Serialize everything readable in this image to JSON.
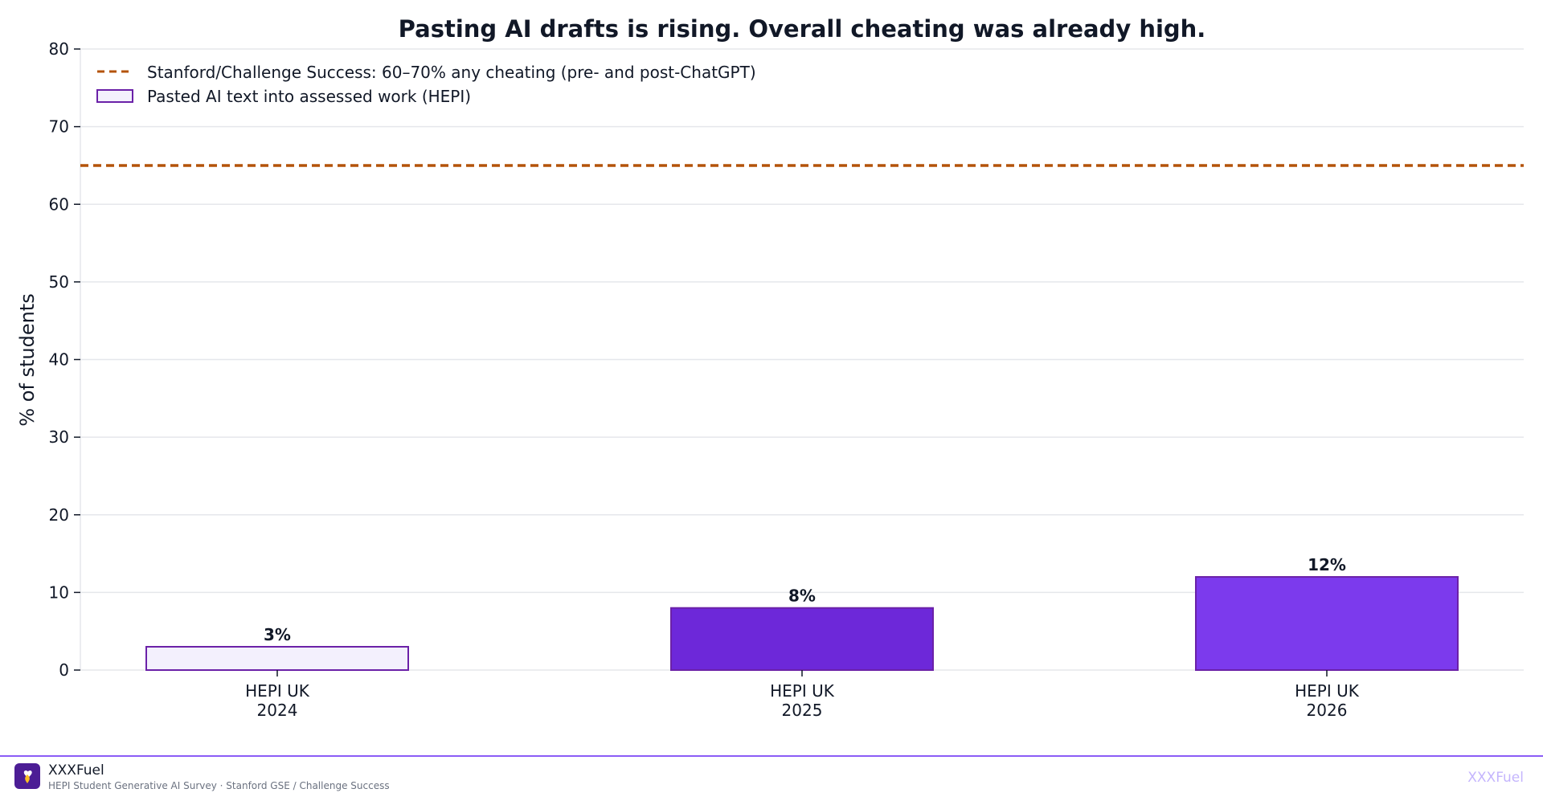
{
  "chart_data": {
    "type": "bar",
    "title": "Pasting AI drafts is rising. Overall cheating was already high.",
    "xlabel": "",
    "ylabel": "% of students",
    "ylim": [
      0,
      80
    ],
    "yticks": [
      0,
      10,
      20,
      30,
      40,
      50,
      60,
      70,
      80
    ],
    "grid": true,
    "legend_position": "top-left",
    "categories": [
      [
        "HEPI UK",
        "2024"
      ],
      [
        "HEPI UK",
        "2025"
      ],
      [
        "HEPI UK",
        "2026"
      ]
    ],
    "series": [
      {
        "name": "Pasted AI text into assessed work (HEPI)",
        "values": [
          3,
          8,
          12
        ],
        "value_labels": [
          "3%",
          "8%",
          "12%"
        ],
        "fill_colors": [
          "#f3f0fd",
          "#6d28d9",
          "#7c3aed"
        ],
        "edge_color": "#6b21a8"
      }
    ],
    "reference_line": {
      "name": "Stanford/Challenge Success: 60–70% any cheating (pre- and post-ChatGPT)",
      "value": 65,
      "style": "dashed",
      "color": "#b45309"
    }
  },
  "footer": {
    "brand": "XXXFuel",
    "source": "HEPI Student Generative AI Survey  ·  Stanford GSE / Challenge Success",
    "watermark": "XXXFuel",
    "logo_icon": "heart-drop-icon",
    "logo_color": "#4c1d95"
  }
}
